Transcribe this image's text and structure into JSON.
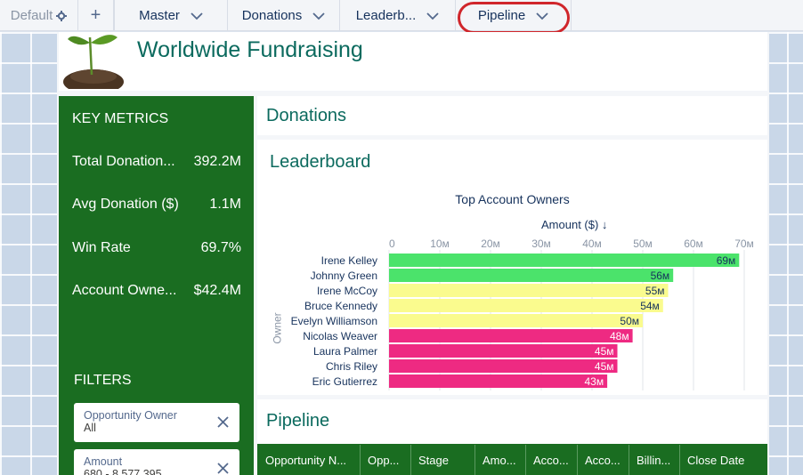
{
  "tabs": {
    "default_label": "Default",
    "plus_label": "+",
    "items": [
      {
        "label": "Master"
      },
      {
        "label": "Donations"
      },
      {
        "label": "Leaderb..."
      },
      {
        "label": "Pipeline"
      }
    ]
  },
  "header": {
    "title": "Worldwide Fundraising"
  },
  "metrics": {
    "title": "KEY METRICS",
    "items": [
      {
        "label": "Total Donation...",
        "value": "392.2M"
      },
      {
        "label": "Avg Donation ($)",
        "value": "1.1M"
      },
      {
        "label": "Win Rate",
        "value": "69.7%"
      },
      {
        "label": "Account Owne...",
        "value": "$42.4M"
      }
    ]
  },
  "filters": {
    "title": "FILTERS",
    "items": [
      {
        "label": "Opportunity Owner",
        "value": "All"
      },
      {
        "label": "Amount",
        "value": "680 - 8,577,395"
      }
    ]
  },
  "sections": {
    "donations": "Donations",
    "leaderboard": "Leaderboard",
    "pipeline": "Pipeline"
  },
  "chart_data": {
    "type": "bar",
    "orientation": "horizontal",
    "title": "Top Account Owners",
    "xlabel": "Amount ($) ↓",
    "ylabel": "Owner",
    "xlim": [
      0,
      70
    ],
    "ticks": [
      "0",
      "10м",
      "20м",
      "30м",
      "40м",
      "50м",
      "60м",
      "70м"
    ],
    "categories": [
      "Irene Kelley",
      "Johnny Green",
      "Irene McCoy",
      "Bruce Kennedy",
      "Evelyn Williamson",
      "Nicolas Weaver",
      "Laura Palmer",
      "Chris Riley",
      "Eric Gutierrez"
    ],
    "values": [
      69,
      56,
      55,
      54,
      50,
      48,
      45,
      45,
      43
    ],
    "labels": [
      "69м",
      "56м",
      "55м",
      "54м",
      "50м",
      "48м",
      "45м",
      "45м",
      "43м"
    ],
    "colors": [
      "#4be36b",
      "#4be36b",
      "#fafb8e",
      "#fafb8e",
      "#fafb8e",
      "#ee2a82",
      "#ee2a82",
      "#ee2a82",
      "#ee2a82"
    ],
    "grid": true
  },
  "table": {
    "headers": [
      "Opportunity N...",
      "Opp...",
      "Stage",
      "Amo...",
      "Acco...",
      "Acco...",
      "Billin...",
      "Close Date"
    ]
  },
  "colors": {
    "accent_green": "#1a6d21",
    "title_teal": "#0b6a5e",
    "highlight_ring": "#d0262b"
  }
}
